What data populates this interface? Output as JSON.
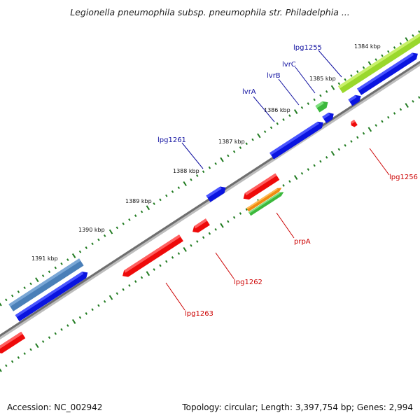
{
  "title": "Legionella pneumophila subsp. pneumophila str. Philadelphia ...",
  "footer": {
    "accession": "Accession: NC_002942",
    "summary": "Topology: circular; Length: 3,397,754 bp; Genes: 2,994"
  },
  "colors": {
    "backbone": "#7a7a7a",
    "tick": "#1f7a1f",
    "forward_gene": "#0a14e0",
    "reverse_gene": "#ee0a0a",
    "label_forward": "#1010a0",
    "label_reverse": "#cc0000",
    "feature_steelblue": "#4a7fb8",
    "feature_lime": "#9ad82c",
    "feature_green": "#3cb83c",
    "feature_orange": "#f08a10"
  },
  "kbp_labels": [
    "1384 kbp",
    "1385 kbp",
    "1386 kbp",
    "1387 kbp",
    "1388 kbp",
    "1389 kbp",
    "1390 kbp",
    "1391 kbp"
  ],
  "gene_labels": {
    "lpg1255": "lpg1255",
    "lvrC": "lvrC",
    "lvrB": "lvrB",
    "lvrA": "lvrA",
    "lpg1261": "lpg1261",
    "lpg1256": "lpg1256",
    "prpA": "prpA",
    "lpg1262": "lpg1262",
    "lpg1263": "lpg1263"
  }
}
